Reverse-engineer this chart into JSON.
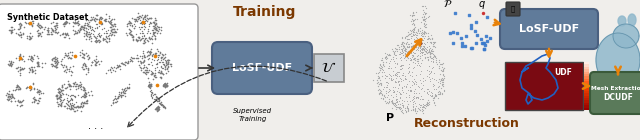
{
  "bg_color": "#f0eeeb",
  "fig_width": 6.4,
  "fig_height": 1.4,
  "title_training": "Training",
  "title_training_color": "#7B3800",
  "title_reconstruction": "Reconstruction",
  "title_reconstruction_color": "#7B3800",
  "label_synthetic": "Synthetic Dataset",
  "label_losf_udf_train": "LoSF-UDF",
  "label_supervised": "Supervised\nTraining",
  "label_losf_udf_test": "LoSF-UDF",
  "label_udf": "UDF",
  "label_mesh": "Mesh Extraction\nDCUDF",
  "label_P": "P",
  "label_q": "q",
  "box_losf_train_color": "#607B9A",
  "box_losf_train_edge": "#4a6080",
  "box_u_color": "#c8cdd2",
  "box_u_edge": "#888888",
  "box_losf_test_color": "#607B9A",
  "box_losf_test_edge": "#4a6080",
  "box_mesh_color": "#5a7a5a",
  "box_mesh_edge": "#3a5a3a",
  "arrow_orange": "#E8820A",
  "arrow_black": "#333333",
  "udf_bg": "#7a0a12",
  "udf_line_color": "#2060c0",
  "synthetic_box_edge": "#999999",
  "dots_gray": "#7a7a7a",
  "dots_query": "#3a7acc",
  "bunny_color": "#b0b8c4",
  "bunny_result_color": "#90b8cc"
}
